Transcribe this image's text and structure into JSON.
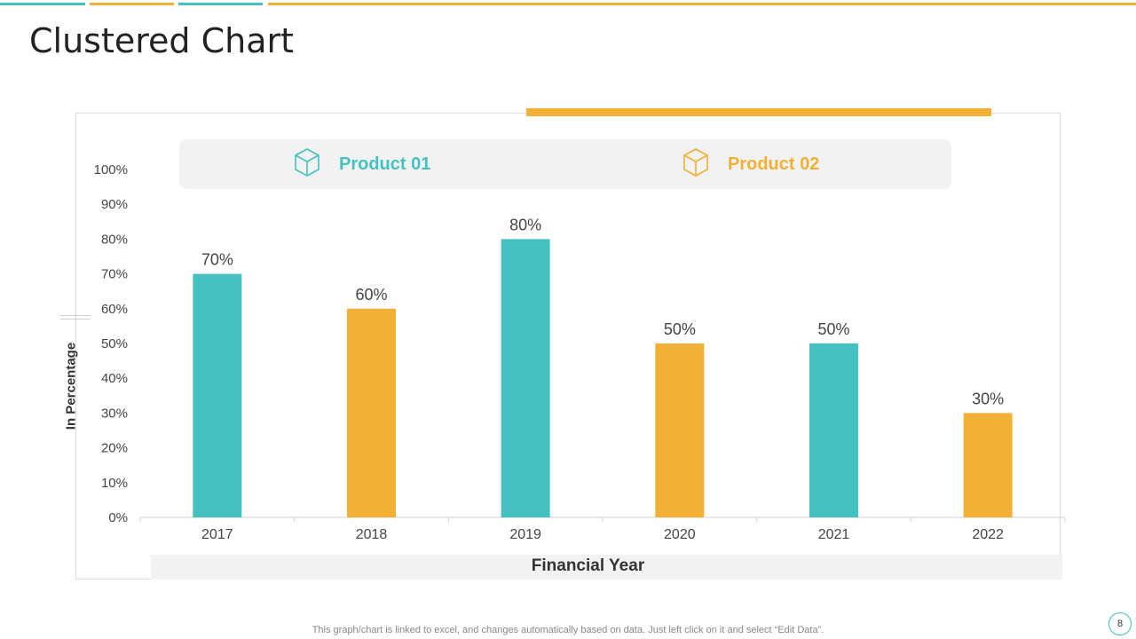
{
  "title": "Clustered Chart",
  "footer_note": "This graph/chart is linked to excel, and changes automatically based on data. Just left click on it and select “Edit Data”.",
  "page_number": "8",
  "colors": {
    "teal": "#45c1c1",
    "orange": "#f2b035",
    "top_bar_colors": [
      "#45c1c1",
      "#f2b035",
      "#45c1c1",
      "#f2b035"
    ]
  },
  "legend": [
    {
      "label": "Product 01",
      "color": "#45c1c1",
      "icon": "cube-icon"
    },
    {
      "label": "Product 02",
      "color": "#f2b035",
      "icon": "cube-icon"
    }
  ],
  "chart_data": {
    "type": "bar",
    "categories": [
      "2017",
      "2018",
      "2019",
      "2020",
      "2021",
      "2022"
    ],
    "series": [
      {
        "name": "Product 01",
        "color": "#45c1c1",
        "values": [
          70,
          null,
          80,
          null,
          50,
          null
        ]
      },
      {
        "name": "Product 02",
        "color": "#f2b035",
        "values": [
          null,
          60,
          null,
          50,
          null,
          30
        ]
      }
    ],
    "data_labels": [
      "70%",
      "60%",
      "80%",
      "50%",
      "50%",
      "30%"
    ],
    "y_ticks": [
      "0%",
      "10%",
      "20%",
      "30%",
      "40%",
      "50%",
      "60%",
      "70%",
      "80%",
      "90%",
      "100%"
    ],
    "ylim": [
      0,
      100
    ],
    "xlabel": "Financial Year",
    "ylabel": "In Percentage",
    "legend_position": "top",
    "grid": false
  }
}
